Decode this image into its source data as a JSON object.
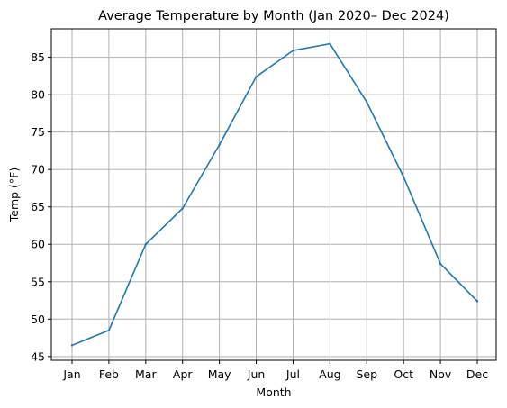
{
  "chart_data": {
    "type": "line",
    "title": "Average Temperature by Month (Jan 2020– Dec 2024)",
    "xlabel": "Month",
    "ylabel": "Temp (°F)",
    "categories": [
      "Jan",
      "Feb",
      "Mar",
      "Apr",
      "May",
      "Jun",
      "Jul",
      "Aug",
      "Sep",
      "Oct",
      "Nov",
      "Dec"
    ],
    "series": [
      {
        "values": [
          46.5,
          48.5,
          60.0,
          64.8,
          73.3,
          82.4,
          85.9,
          86.8,
          79.0,
          69.0,
          57.4,
          52.4
        ]
      }
    ],
    "yticks": [
      45,
      50,
      55,
      60,
      65,
      70,
      75,
      80,
      85
    ],
    "ylim": [
      44.5,
      88.8
    ],
    "grid": true,
    "line_color": "#1f77b4"
  }
}
